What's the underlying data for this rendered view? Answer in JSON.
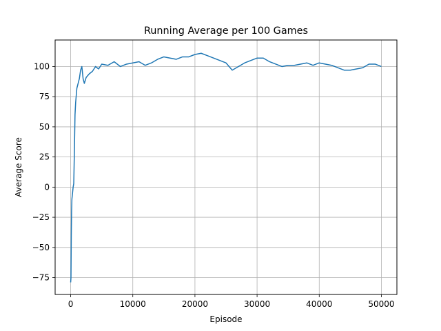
{
  "chart_data": {
    "type": "line",
    "title": "Running Average per 100 Games",
    "xlabel": "Episode",
    "ylabel": "Average Score",
    "xlim": [
      -2500,
      52500
    ],
    "ylim": [
      -89,
      122
    ],
    "x_ticks": [
      0,
      10000,
      20000,
      30000,
      40000,
      50000
    ],
    "x_tick_labels": [
      "0",
      "10000",
      "20000",
      "30000",
      "40000",
      "50000"
    ],
    "y_ticks": [
      -75,
      -50,
      -25,
      0,
      25,
      50,
      75,
      100
    ],
    "y_tick_labels": [
      "−75",
      "−50",
      "−25",
      "0",
      "25",
      "50",
      "75",
      "100"
    ],
    "grid": true,
    "line_color": "#1f77b4",
    "series": [
      {
        "x": [
          0,
          50,
          100,
          150,
          200,
          300,
          400,
          500,
          600,
          700,
          800,
          900,
          1000,
          1200,
          1400,
          1600,
          1800,
          2000,
          2200,
          2500,
          3000,
          3500,
          4000,
          4500,
          5000,
          6000,
          7000,
          8000,
          9000,
          10000,
          11000,
          12000,
          13000,
          14000,
          15000,
          16000,
          17000,
          18000,
          19000,
          20000,
          21000,
          22000,
          23000,
          24000,
          25000,
          26000,
          27000,
          28000,
          29000,
          30000,
          31000,
          32000,
          33000,
          34000,
          35000,
          36000,
          37000,
          38000,
          39000,
          40000,
          41000,
          42000,
          43000,
          44000,
          45000,
          46000,
          47000,
          48000,
          49000,
          50000
        ],
        "y": [
          -79,
          -75,
          -40,
          -20,
          -10,
          -5,
          0,
          3,
          30,
          60,
          70,
          76,
          82,
          86,
          90,
          97,
          100,
          90,
          86,
          91,
          94,
          96,
          100,
          98,
          102,
          101,
          104,
          100,
          102,
          103,
          104,
          101,
          103,
          106,
          108,
          107,
          106,
          108,
          108,
          110,
          111,
          109,
          107,
          105,
          103,
          97,
          100,
          103,
          105,
          107,
          107,
          104,
          102,
          100,
          101,
          101,
          102,
          103,
          101,
          103,
          102,
          101,
          99,
          97,
          97,
          98,
          99,
          102,
          102,
          100
        ]
      }
    ]
  }
}
